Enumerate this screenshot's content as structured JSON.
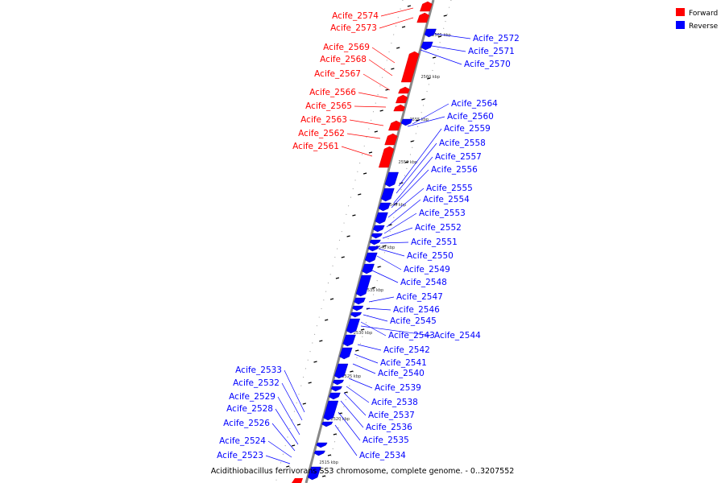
{
  "colors": {
    "forward": "#ff0000",
    "reverse": "#0000ff",
    "axis": "#888888",
    "caption": "#000000"
  },
  "legend": {
    "items": [
      {
        "label": "Forward",
        "color": "#ff0000"
      },
      {
        "label": "Reverse",
        "color": "#0000ff"
      }
    ]
  },
  "caption": "Acidithiobacillus ferrivorans SS3 chromosome, complete genome. - 0..3207552",
  "ticks": [
    "2565 kbp",
    "2560 kbp",
    "2555 kbp",
    "2550 kbp",
    "2545 kbp",
    "2540 kbp",
    "2535 kbp",
    "2530 kbp",
    "2525 kbp",
    "2520 kbp",
    "2515 kbp"
  ],
  "forward_genes": [
    "Acife_2574",
    "Acife_2573",
    "Acife_2569",
    "Acife_2568",
    "Acife_2567",
    "Acife_2566",
    "Acife_2565",
    "Acife_2563",
    "Acife_2562",
    "Acife_2561"
  ],
  "reverse_genes_right": [
    "Acife_2572",
    "Acife_2571",
    "Acife_2570",
    "Acife_2564",
    "Acife_2560",
    "Acife_2559",
    "Acife_2558",
    "Acife_2557",
    "Acife_2556",
    "Acife_2555",
    "Acife_2554",
    "Acife_2553",
    "Acife_2552",
    "Acife_2551",
    "Acife_2550",
    "Acife_2549",
    "Acife_2548",
    "Acife_2547",
    "Acife_2546",
    "Acife_2545",
    "Acife_2543",
    "Acife_2544",
    "Acife_2542",
    "Acife_2541",
    "Acife_2540",
    "Acife_2539",
    "Acife_2538",
    "Acife_2537",
    "Acife_2536",
    "Acife_2535",
    "Acife_2534"
  ],
  "reverse_genes_left": [
    "Acife_2533",
    "Acife_2532",
    "Acife_2529",
    "Acife_2528",
    "Acife_2526",
    "Acife_2524",
    "Acife_2523"
  ]
}
